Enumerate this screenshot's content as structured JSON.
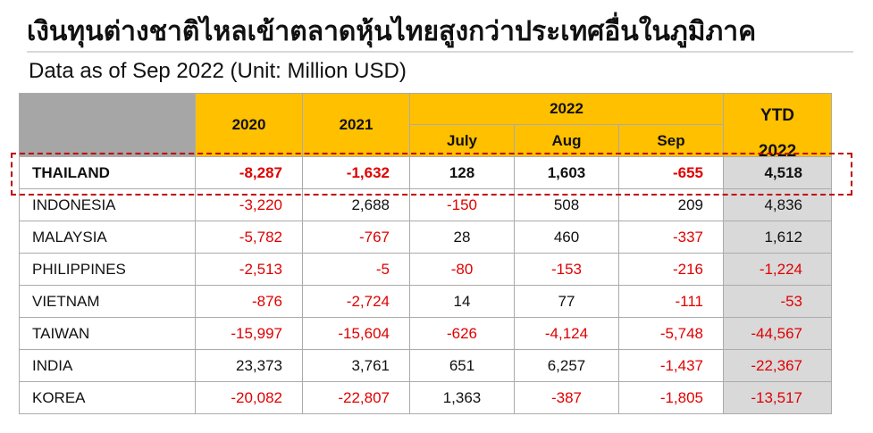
{
  "title": "เงินทุนต่างชาติไหลเข้าตลาดหุ้นไทยสูงกว่าประเทศอื่นในภูมิภาค",
  "subtitle": "Data as of Sep 2022 (Unit: Million USD)",
  "table": {
    "headers": {
      "y2020": "2020",
      "y2021": "2021",
      "y2022": "2022",
      "july": "July",
      "aug": "Aug",
      "sep": "Sep",
      "ytd_line1": "YTD",
      "ytd_line2": "2022"
    },
    "rows": [
      {
        "country": "THAILAND",
        "y2020": "-8,287",
        "y2021": "-1,632",
        "july": "128",
        "aug": "1,603",
        "sep": "-655",
        "ytd": "4,518"
      },
      {
        "country": "INDONESIA",
        "y2020": "-3,220",
        "y2021": "2,688",
        "july": "-150",
        "aug": "508",
        "sep": "209",
        "ytd": "4,836"
      },
      {
        "country": "MALAYSIA",
        "y2020": "-5,782",
        "y2021": "-767",
        "july": "28",
        "aug": "460",
        "sep": "-337",
        "ytd": "1,612"
      },
      {
        "country": "PHILIPPINES",
        "y2020": "-2,513",
        "y2021": "-5",
        "july": "-80",
        "aug": "-153",
        "sep": "-216",
        "ytd": "-1,224"
      },
      {
        "country": "VIETNAM",
        "y2020": "-876",
        "y2021": "-2,724",
        "july": "14",
        "aug": "77",
        "sep": "-111",
        "ytd": "-53"
      },
      {
        "country": "TAIWAN",
        "y2020": "-15,997",
        "y2021": "-15,604",
        "july": "-626",
        "aug": "-4,124",
        "sep": "-5,748",
        "ytd": "-44,567"
      },
      {
        "country": "INDIA",
        "y2020": "23,373",
        "y2021": "3,761",
        "july": "651",
        "aug": "6,257",
        "sep": "-1,437",
        "ytd": "-22,367"
      },
      {
        "country": "KOREA",
        "y2020": "-20,082",
        "y2021": "-22,807",
        "july": "1,363",
        "aug": "-387",
        "sep": "-1,805",
        "ytd": "-13,517"
      }
    ]
  },
  "colors": {
    "header_bg": "#ffc000",
    "corner_bg": "#a6a6a6",
    "ytd_bg": "#d9d9d9",
    "negative": "#e00000",
    "highlight_border": "#c00000"
  }
}
